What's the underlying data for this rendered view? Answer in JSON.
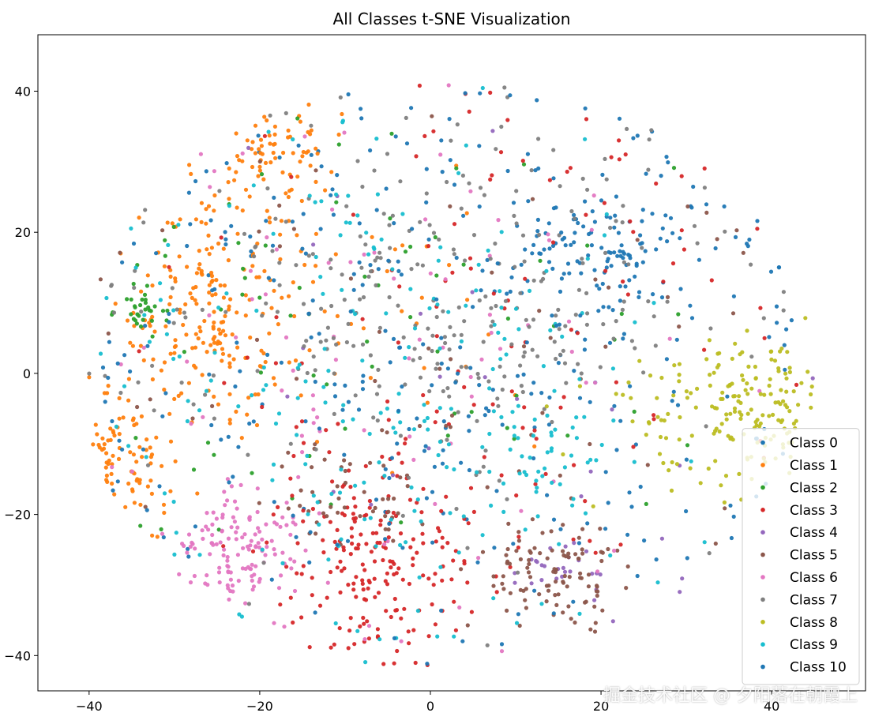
{
  "chart_data": {
    "type": "scatter",
    "title": "All Classes t-SNE Visualization",
    "xlabel": "",
    "ylabel": "",
    "xlim": [
      -46,
      51
    ],
    "ylim": [
      -45,
      48
    ],
    "xticks": [
      -40,
      -20,
      0,
      20,
      40
    ],
    "yticks": [
      -40,
      -20,
      0,
      20,
      40
    ],
    "grid": false,
    "legend_position": "lower-right",
    "seed": 7,
    "series": [
      {
        "name": "Class 0",
        "color": "#1f77b4",
        "clusters": [
          {
            "cx": 20,
            "cy": 17,
            "sx": 5,
            "sy": 4,
            "n": 90
          },
          {
            "cx": 5,
            "cy": 5,
            "sx": 22,
            "sy": 18,
            "n": 130
          }
        ]
      },
      {
        "name": "Class 1",
        "color": "#ff7f0e",
        "clusters": [
          {
            "cx": -25,
            "cy": 10,
            "sx": 5,
            "sy": 9,
            "n": 200
          },
          {
            "cx": -18,
            "cy": 30,
            "sx": 4,
            "sy": 4,
            "n": 70
          },
          {
            "cx": -37,
            "cy": -12,
            "sx": 3,
            "sy": 5,
            "n": 80
          },
          {
            "cx": -10,
            "cy": 8,
            "sx": 15,
            "sy": 15,
            "n": 40
          }
        ]
      },
      {
        "name": "Class 2",
        "color": "#2ca02c",
        "clusters": [
          {
            "cx": -34,
            "cy": 9,
            "sx": 1.5,
            "sy": 1.5,
            "n": 30
          },
          {
            "cx": -8,
            "cy": 8,
            "sx": 18,
            "sy": 16,
            "n": 70
          }
        ]
      },
      {
        "name": "Class 3",
        "color": "#d62728",
        "clusters": [
          {
            "cx": -6,
            "cy": -26,
            "sx": 6,
            "sy": 8,
            "n": 200
          },
          {
            "cx": 10,
            "cy": 5,
            "sx": 18,
            "sy": 20,
            "n": 120
          }
        ]
      },
      {
        "name": "Class 4",
        "color": "#9467bd",
        "clusters": [
          {
            "cx": 15,
            "cy": -28,
            "sx": 3,
            "sy": 2,
            "n": 25
          },
          {
            "cx": 5,
            "cy": 0,
            "sx": 18,
            "sy": 18,
            "n": 25
          }
        ]
      },
      {
        "name": "Class 5",
        "color": "#8c564b",
        "clusters": [
          {
            "cx": 15,
            "cy": -28,
            "sx": 4,
            "sy": 4,
            "n": 100
          },
          {
            "cx": -10,
            "cy": -18,
            "sx": 5,
            "sy": 4,
            "n": 50
          },
          {
            "cx": 0,
            "cy": 5,
            "sx": 22,
            "sy": 18,
            "n": 60
          }
        ]
      },
      {
        "name": "Class 6",
        "color": "#e377c2",
        "clusters": [
          {
            "cx": -23,
            "cy": -25,
            "sx": 4,
            "sy": 4,
            "n": 130
          },
          {
            "cx": -5,
            "cy": 0,
            "sx": 18,
            "sy": 18,
            "n": 90
          }
        ]
      },
      {
        "name": "Class 7",
        "color": "#7f7f7f",
        "clusters": [
          {
            "cx": 0,
            "cy": 10,
            "sx": 18,
            "sy": 14,
            "n": 300
          }
        ]
      },
      {
        "name": "Class 8",
        "color": "#bcbd22",
        "clusters": [
          {
            "cx": 37,
            "cy": -4,
            "sx": 5,
            "sy": 5,
            "n": 150
          },
          {
            "cx": 28,
            "cy": -8,
            "sx": 6,
            "sy": 6,
            "n": 30
          }
        ]
      },
      {
        "name": "Class 9",
        "color": "#17becf",
        "clusters": [
          {
            "cx": -5,
            "cy": -2,
            "sx": 16,
            "sy": 18,
            "n": 220
          },
          {
            "cx": 12,
            "cy": -12,
            "sx": 4,
            "sy": 4,
            "n": 40
          }
        ]
      },
      {
        "name": "Class 10",
        "color": "#1f77b4",
        "clusters": [
          {
            "cx": 0,
            "cy": 5,
            "sx": 22,
            "sy": 20,
            "n": 220
          }
        ]
      }
    ]
  },
  "watermark": "掘金技术社区 @ 夕阳落在朝霞上"
}
